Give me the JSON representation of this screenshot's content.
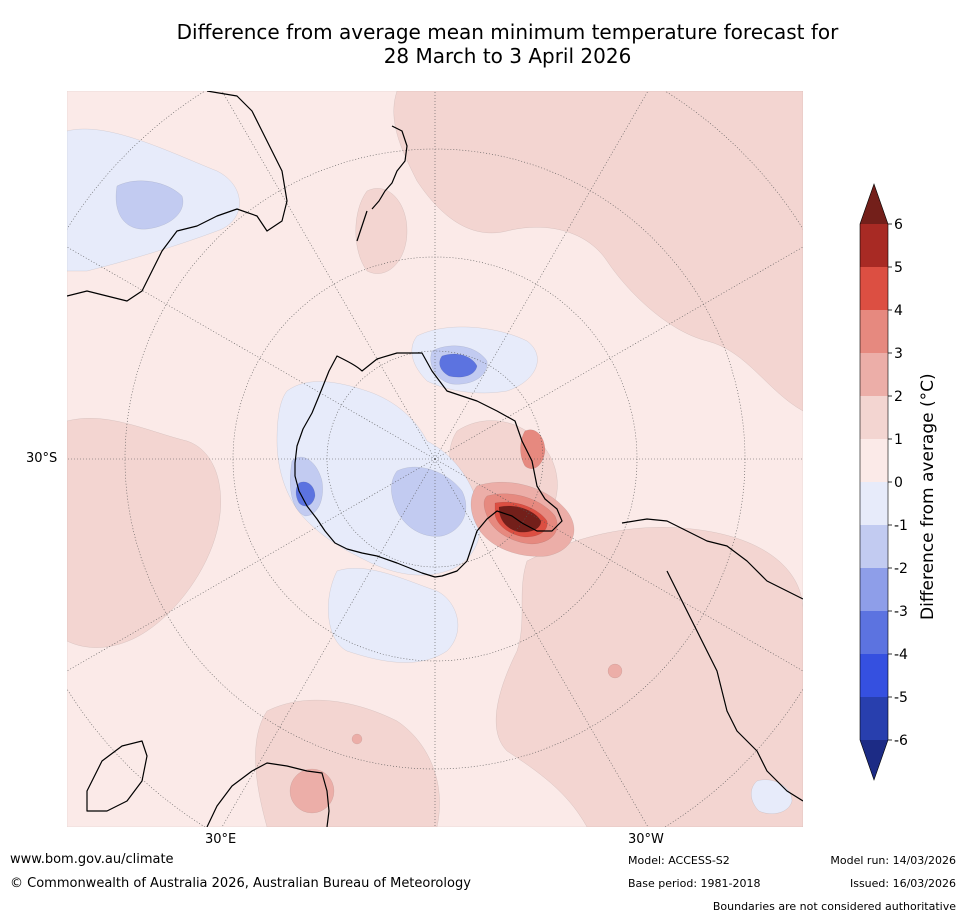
{
  "title": {
    "line1": "Difference from average mean minimum temperature forecast for",
    "line2": "28 March to 3 April 2026"
  },
  "map": {
    "projection": "south-polar-stereographic",
    "labels": {
      "lat": "30°S",
      "lon_east": "30°E",
      "lon_west": "30°W"
    },
    "colors": {
      "pos_0_1": "#fbeae8",
      "pos_1_2": "#f3d5d1",
      "pos_2_3": "#ecaea8",
      "pos_3_4": "#e6897f",
      "pos_4_5": "#dc4f42",
      "pos_5_6": "#a82a24",
      "pos_gt6": "#731f1a",
      "neg_0_1": "#e7ebfa",
      "neg_1_2": "#c2cbf1",
      "neg_2_3": "#8e9ee9",
      "neg_3_4": "#5c73e0",
      "neg_4_5": "#3550e0",
      "neg_5_6": "#283fae",
      "neg_lt6": "#1c2b85",
      "coast": "#000000",
      "graticule": "#555555"
    }
  },
  "colorbar": {
    "title": "Difference from average (°C)",
    "ticks": [
      "6",
      "5",
      "4",
      "3",
      "2",
      "1",
      "0",
      "-1",
      "-2",
      "-3",
      "-4",
      "-5",
      "-6"
    ],
    "bands": [
      "#a82a24",
      "#dc4f42",
      "#e6897f",
      "#ecaea8",
      "#f3d5d1",
      "#fbeae8",
      "#e7ebfa",
      "#c2cbf1",
      "#8e9ee9",
      "#5c73e0",
      "#3550e0",
      "#283fae"
    ],
    "top_arrow": "#731f1a",
    "bottom_arrow": "#1c2b85"
  },
  "footer": {
    "website": "www.bom.gov.au/climate",
    "copyright": "© Commonwealth of Australia 2026, Australian Bureau of Meteorology",
    "model": "Model: ACCESS-S2",
    "base_period": "Base period: 1981-2018",
    "model_run": "Model run: 14/03/2026",
    "issued": "Issued: 16/03/2026",
    "disclaimer": "Boundaries are not considered authoritative"
  }
}
